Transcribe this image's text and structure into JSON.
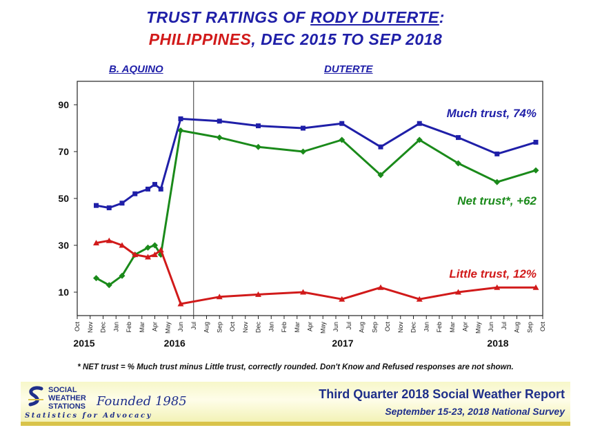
{
  "header": {
    "title_line1_a": "TRUST RATINGS OF ",
    "title_line1_b": "RODY DUTERTE",
    "title_line1_c": ":",
    "title_line2_a": "PHILIPPINES",
    "title_line2_b": ", DEC 2015 TO SEP 2018",
    "era_left": "B. AQUINO",
    "era_right": "DUTERTE"
  },
  "footnote": "* NET trust = % Much trust minus Little trust, correctly rounded.  Don't Know and Refused responses are not shown.",
  "banner": {
    "logo_line1": "SOCIAL",
    "logo_line2": "WEATHER",
    "logo_line3": "STATIONS",
    "founded": "Founded 1985",
    "tagline": "Statistics for Advocacy",
    "report_title": "Third Quarter 2018 Social Weather Report",
    "report_subtitle": "September 15-23, 2018 National Survey"
  },
  "colors": {
    "much": "#1f1fa8",
    "net": "#1a8a1a",
    "little": "#d11a1a"
  },
  "chart_data": {
    "type": "line",
    "x_unit": "month",
    "x_range": [
      "2015-10",
      "2018-10"
    ],
    "y_range": [
      0,
      100
    ],
    "y_ticks": [
      10,
      30,
      50,
      70,
      90
    ],
    "month_ticks": [
      "Oct",
      "Nov",
      "Dec",
      "Jan",
      "Feb",
      "Mar",
      "Apr",
      "May",
      "Jun",
      "Jul",
      "Aug",
      "Sep",
      "Oct",
      "Nov",
      "Dec",
      "Jan",
      "Feb",
      "Mar",
      "Apr",
      "May",
      "Jun",
      "Jul",
      "Aug",
      "Sep",
      "Oct",
      "Nov",
      "Dec",
      "Jan",
      "Feb",
      "Mar",
      "Apr",
      "May",
      "Jun",
      "Jul",
      "Aug",
      "Sep",
      "Oct"
    ],
    "year_labels": [
      {
        "label": "2015",
        "month": "2015-10"
      },
      {
        "label": "2016",
        "month": "2016-05"
      },
      {
        "label": "2017",
        "month": "2017-06"
      },
      {
        "label": "2018",
        "month": "2018-06"
      }
    ],
    "vertical_marker": "2016-07",
    "series": [
      {
        "name": "Much trust, 74%",
        "key": "much",
        "x": [
          "2015-11-15",
          "2015-12-15",
          "2016-01-15",
          "2016-02-15",
          "2016-03-15",
          "2016-03-31",
          "2016-04-15",
          "2016-06-01",
          "2016-09-01",
          "2016-12-01",
          "2017-03-15",
          "2017-06-15",
          "2017-09-15",
          "2017-12-15",
          "2018-03-15",
          "2018-06-15",
          "2018-09-15"
        ],
        "values": [
          47,
          46,
          48,
          52,
          54,
          56,
          54,
          84,
          83,
          81,
          80,
          82,
          72,
          82,
          76,
          69,
          74
        ]
      },
      {
        "name": "Net trust*, +62",
        "key": "net",
        "x": [
          "2015-11-15",
          "2015-12-15",
          "2016-01-15",
          "2016-02-15",
          "2016-03-15",
          "2016-03-31",
          "2016-04-15",
          "2016-06-01",
          "2016-09-01",
          "2016-12-01",
          "2017-03-15",
          "2017-06-15",
          "2017-09-15",
          "2017-12-15",
          "2018-03-15",
          "2018-06-15",
          "2018-09-15"
        ],
        "values": [
          16,
          13,
          17,
          26,
          29,
          30,
          26,
          79,
          76,
          72,
          70,
          75,
          60,
          75,
          65,
          57,
          62
        ]
      },
      {
        "name": "Little trust, 12%",
        "key": "little",
        "x": [
          "2015-11-15",
          "2015-12-15",
          "2016-01-15",
          "2016-02-15",
          "2016-03-15",
          "2016-03-31",
          "2016-04-15",
          "2016-06-01",
          "2016-09-01",
          "2016-12-01",
          "2017-03-15",
          "2017-06-15",
          "2017-09-15",
          "2017-12-15",
          "2018-03-15",
          "2018-06-15",
          "2018-09-15"
        ],
        "values": [
          31,
          32,
          30,
          26,
          25,
          26,
          28,
          5,
          8,
          9,
          10,
          7,
          12,
          7,
          10,
          12,
          12
        ]
      }
    ]
  }
}
